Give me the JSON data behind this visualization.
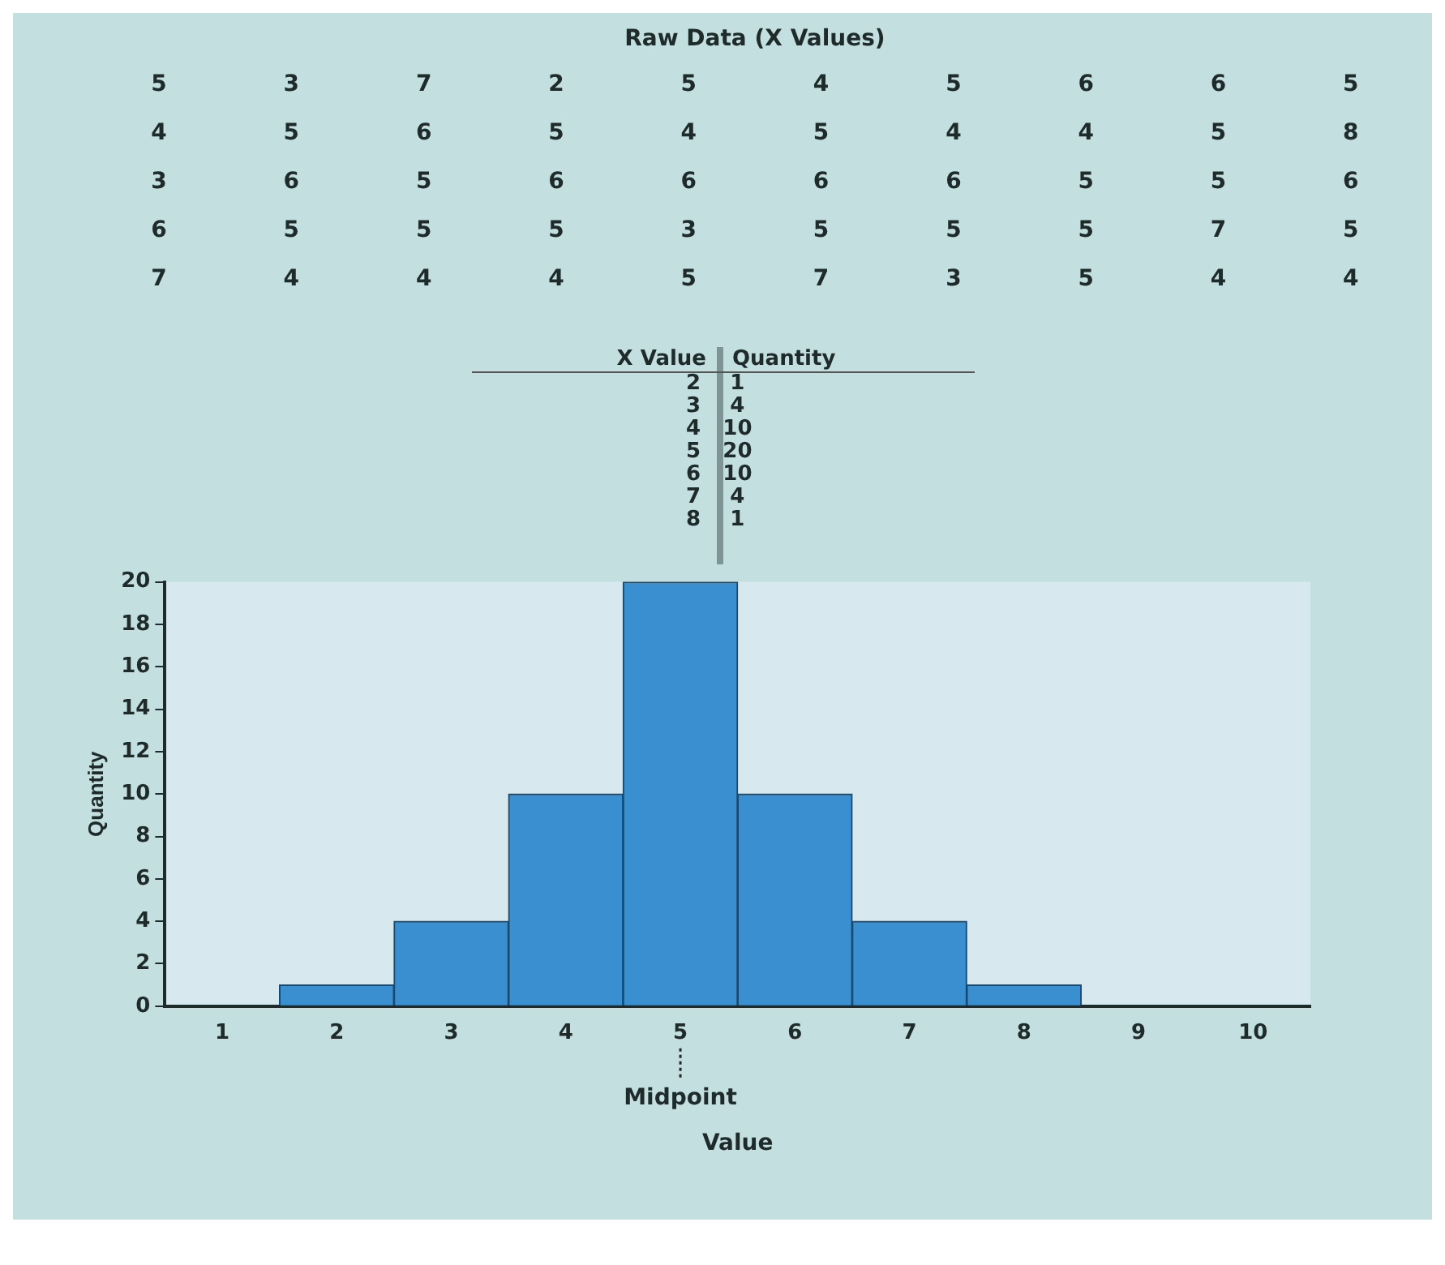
{
  "chart_data": [
    {
      "type": "other",
      "title": "Raw Data (X Values)",
      "annotations": [
        "5 3 7 2 5 4 5 6 6 5",
        "4 5 6 5 4 5 4 4 5 8",
        "3 6 5 6 6 6 6 5 5 6",
        "6 5 5 5 3 5 5 5 7 5",
        "7 4 4 4 5 7 3 5 4 4"
      ]
    },
    {
      "type": "other",
      "annotations": [
        "X Value",
        "Quantity",
        "2 1",
        "3 4",
        "4 10",
        "5 20",
        "6 10",
        "7 4",
        "8 1"
      ]
    },
    {
      "type": "histogram",
      "xlabel": "Value",
      "ylabel": "Quantity",
      "bins": [
        0.5,
        1.5,
        2.5,
        3.5,
        4.5,
        5.5,
        6.5,
        7.5,
        8.5,
        9.5,
        10.5
      ],
      "values": [
        0,
        1,
        4,
        10,
        20,
        10,
        4,
        1,
        0,
        0
      ],
      "color": "#3a8fd0",
      "xlim": [
        0.5,
        10.5
      ],
      "xticks": [
        1,
        2,
        3,
        4,
        5,
        6,
        7,
        8,
        9,
        10
      ],
      "ylim": [
        0,
        20
      ],
      "yticks": [
        0,
        2,
        4,
        6,
        8,
        10,
        12,
        14,
        16,
        18,
        20
      ],
      "grid": false,
      "legend": false,
      "annotations": [
        {
          "text": "Midpoint",
          "x": 5
        }
      ]
    }
  ]
}
